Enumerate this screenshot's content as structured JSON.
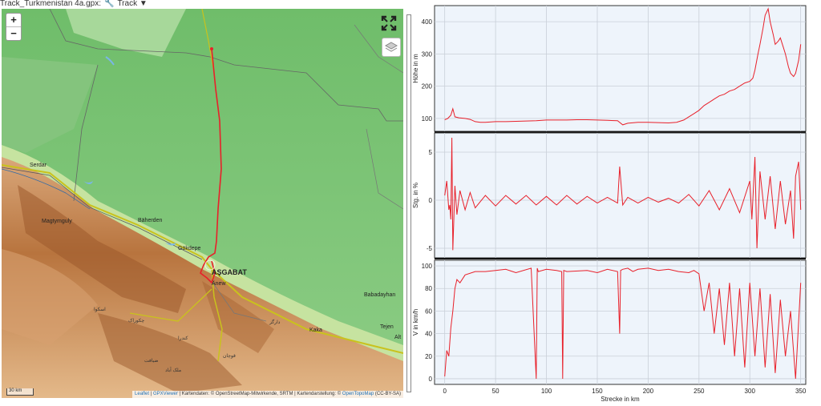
{
  "header": {
    "file_label": "Track_Turkmenistan 4a.gpx:",
    "track_label": "Track ▼"
  },
  "map": {
    "zoom_in": "+",
    "zoom_out": "−",
    "scale_label": "30 km",
    "attribution": {
      "leaflet": "Leaflet",
      "sep1": " | ",
      "gpxviewer": "GPXViewer",
      "rest1": " | Kartendaten: © OpenStreetMap-Mitwirkende, SRTM | Kartendarstellung: © ",
      "opentopomap": "OpenTopoMap",
      "rest2": " (CC-BY-SA)"
    },
    "places": {
      "serdar": "Serdar",
      "magtymguly": "Magtymguly",
      "baherden": "Bäherden",
      "gokdepe": "Gökdepe",
      "asgabat": "AŞGABAT",
      "anew": "Änew",
      "kaka": "Kaka",
      "babadayhan": "Babadayhan",
      "tejen": "Tejen",
      "alt": "Alt",
      "ar1": "اسکوا",
      "ar2": "چکوراک",
      "ar3": "دارگز",
      "ar4": "کندرا",
      "ar5": "قوچان",
      "ar6": "ضیافت",
      "ar7": "ملک آباد"
    },
    "colors": {
      "track": "#e8202a",
      "lowland": "#7ec77a",
      "mountain": "#b4703c"
    }
  },
  "chart_data": [
    {
      "type": "line",
      "title": "",
      "xlabel": "",
      "ylabel": "Höhe in m",
      "xlim": [
        -10,
        355
      ],
      "ylim": [
        60,
        450
      ],
      "yticks": [
        100,
        200,
        300,
        400
      ],
      "series": [
        {
          "x": [
            0,
            3,
            6,
            8,
            10,
            14,
            20,
            25,
            30,
            35,
            40,
            50,
            60,
            70,
            80,
            90,
            100,
            110,
            120,
            130,
            140,
            150,
            160,
            170,
            175,
            180,
            190,
            200,
            210,
            220,
            228,
            235,
            240,
            245,
            250,
            255,
            260,
            265,
            270,
            275,
            280,
            285,
            290,
            295,
            300,
            303,
            305,
            308,
            310,
            313,
            315,
            318,
            320,
            323,
            325,
            328,
            330,
            333,
            335,
            338,
            340,
            343,
            345,
            348,
            350
          ],
          "y": [
            96,
            100,
            110,
            130,
            105,
            102,
            100,
            97,
            90,
            88,
            88,
            90,
            90,
            91,
            92,
            93,
            95,
            95,
            95,
            96,
            96,
            95,
            94,
            93,
            80,
            85,
            88,
            88,
            87,
            86,
            88,
            95,
            105,
            115,
            125,
            140,
            150,
            160,
            170,
            175,
            185,
            190,
            200,
            210,
            215,
            225,
            250,
            300,
            330,
            380,
            420,
            440,
            400,
            360,
            330,
            340,
            350,
            320,
            300,
            260,
            240,
            230,
            240,
            280,
            330
          ]
        }
      ],
      "grid": true
    },
    {
      "type": "line",
      "title": "",
      "xlabel": "",
      "ylabel": "Stg. in %",
      "xlim": [
        -10,
        355
      ],
      "ylim": [
        -6,
        7
      ],
      "yticks": [
        -5,
        0,
        5
      ],
      "series": [
        {
          "x": [
            0,
            2,
            4,
            5,
            6,
            7,
            8,
            10,
            12,
            15,
            20,
            25,
            30,
            40,
            50,
            60,
            70,
            80,
            90,
            100,
            110,
            120,
            130,
            140,
            150,
            160,
            170,
            172,
            175,
            180,
            190,
            200,
            210,
            220,
            230,
            240,
            250,
            260,
            270,
            280,
            290,
            300,
            302,
            305,
            307,
            310,
            315,
            320,
            325,
            330,
            335,
            340,
            343,
            345,
            348,
            350
          ],
          "y": [
            0.5,
            2,
            -1,
            -0.5,
            -2,
            6.5,
            -5.2,
            1.5,
            -1.5,
            1,
            -1,
            0.8,
            -0.8,
            0.5,
            -0.6,
            0.5,
            -0.4,
            0.5,
            -0.5,
            0.4,
            -0.5,
            0.5,
            -0.4,
            0.4,
            -0.3,
            0.3,
            -0.3,
            3.5,
            -0.5,
            0.3,
            -0.3,
            0.3,
            -0.2,
            0.2,
            -0.3,
            0.6,
            -0.6,
            1,
            -1,
            1.2,
            -1.3,
            2,
            -2,
            4.5,
            -5,
            3,
            -2,
            2.5,
            -3,
            2,
            -2.5,
            1,
            -4,
            2.5,
            4,
            -1
          ]
        }
      ],
      "grid": true
    },
    {
      "type": "line",
      "title": "",
      "xlabel": "Strecke in km",
      "ylabel": "V in km/h",
      "xlim": [
        -10,
        355
      ],
      "ylim": [
        -5,
        105
      ],
      "yticks": [
        0,
        20,
        40,
        60,
        80,
        100
      ],
      "xticks": [
        0,
        50,
        100,
        150,
        200,
        250,
        300,
        350
      ],
      "series": [
        {
          "x": [
            0,
            2,
            4,
            6,
            8,
            10,
            12,
            15,
            20,
            30,
            40,
            50,
            60,
            70,
            85,
            90,
            91,
            92,
            100,
            110,
            115,
            116,
            117,
            120,
            140,
            150,
            160,
            170,
            172,
            173,
            175,
            180,
            185,
            190,
            200,
            210,
            220,
            230,
            240,
            245,
            250,
            255,
            260,
            265,
            270,
            275,
            280,
            285,
            290,
            295,
            300,
            305,
            310,
            315,
            320,
            325,
            330,
            335,
            340,
            345,
            350
          ],
          "y": [
            2,
            25,
            20,
            45,
            60,
            80,
            88,
            85,
            92,
            95,
            95,
            96,
            97,
            94,
            98,
            0,
            98,
            95,
            97,
            96,
            95,
            0,
            96,
            95,
            96,
            94,
            97,
            95,
            40,
            96,
            97,
            98,
            95,
            97,
            98,
            96,
            97,
            95,
            94,
            96,
            93,
            60,
            85,
            40,
            80,
            30,
            85,
            20,
            80,
            10,
            85,
            20,
            80,
            10,
            75,
            5,
            70,
            20,
            60,
            0,
            85
          ]
        }
      ],
      "grid": true
    }
  ]
}
